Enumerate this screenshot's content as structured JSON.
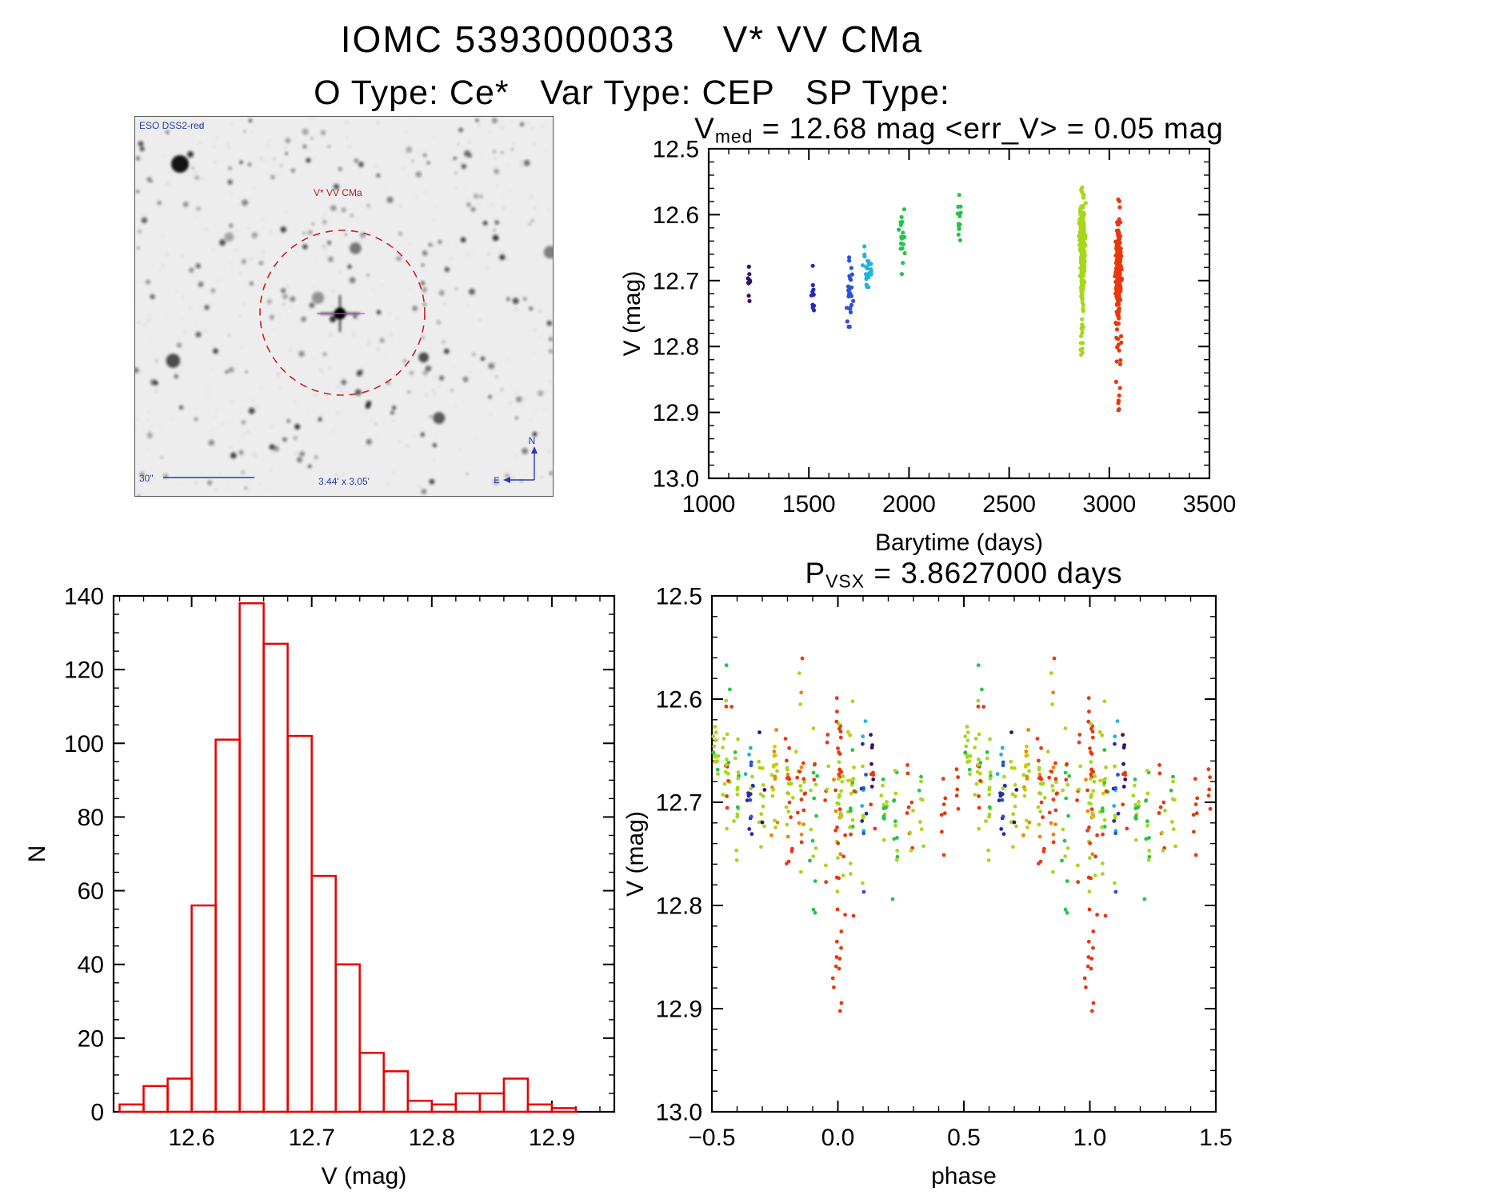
{
  "page": {
    "title": "IOMC 5393000033    V* VV CMa",
    "subtitle": "O Type: Ce*   Var Type: CEP   SP Type:"
  },
  "finder": {
    "survey_label": "ESO DSS2-red",
    "target_label": "V* VV CMa",
    "scale_label": "30\"",
    "fov_label": "3.44' x 3.05'",
    "compass_north": "N",
    "compass_east": "E",
    "marker_color": "#cc2020",
    "annotation_color": "#2a3ab0",
    "target_label_color": "#b22222"
  },
  "palette": {
    "pu": "#3c0d68",
    "nb": "#2a2ab2",
    "bl": "#2a52d6",
    "cy": "#1fb4d8",
    "gr": "#27c24c",
    "ch": "#a6d71c",
    "ye": "#d9c400",
    "or": "#f08300",
    "re": "#e8380d"
  },
  "chart_data": [
    {
      "id": "lightcurve",
      "type": "scatter",
      "title": "V_med = 12.68 mag <err_V> = 0.05 mag",
      "title_parts": {
        "pre": "V",
        "sub": "med",
        "post": " = 12.68 mag <err_V> = 0.05 mag"
      },
      "xlabel": "Barytime (days)",
      "ylabel": "V (mag)",
      "xlim": [
        1000,
        3500
      ],
      "ylim": [
        12.5,
        13.0
      ],
      "invert_y": true,
      "grid": false,
      "xticks": [
        1000,
        1500,
        2000,
        2500,
        3000,
        3500
      ],
      "xtick_labels": [
        "1000",
        "1500",
        "2000",
        "2500",
        "3000",
        "3500"
      ],
      "x_minor": 100,
      "yticks": [
        12.5,
        12.6,
        12.7,
        12.8,
        12.9,
        13.0
      ],
      "ytick_labels": [
        "12.5",
        "12.6",
        "12.7",
        "12.8",
        "12.9",
        "13.0"
      ],
      "y_minor": 0.02,
      "v_med_mag": 12.68,
      "err_v_mag": 0.05,
      "clusters": [
        {
          "x": 1200,
          "xs": 6,
          "n": 9,
          "y": 12.69,
          "ys": 0.028,
          "ymin": 12.645,
          "ymax": 12.735,
          "color": "pu"
        },
        {
          "x": 1520,
          "xs": 5,
          "n": 11,
          "y": 12.71,
          "ys": 0.02,
          "ymin": 12.675,
          "ymax": 12.745,
          "color": "nb"
        },
        {
          "x": 1705,
          "xs": 8,
          "n": 26,
          "y": 12.715,
          "ys": 0.03,
          "ymin": 12.66,
          "ymax": 12.77,
          "color": "bl"
        },
        {
          "x": 1790,
          "xs": 10,
          "n": 22,
          "y": 12.675,
          "ys": 0.018,
          "ymin": 12.645,
          "ymax": 12.71,
          "color": "cy"
        },
        {
          "x": 1965,
          "xs": 7,
          "n": 20,
          "y": 12.635,
          "ys": 0.03,
          "ymin": 12.575,
          "ymax": 12.69,
          "color": "gr"
        },
        {
          "x": 2250,
          "xs": 5,
          "n": 13,
          "y": 12.615,
          "ys": 0.025,
          "ymin": 12.57,
          "ymax": 12.655,
          "color": "gr"
        },
        {
          "x": 2865,
          "xs": 6,
          "n": 280,
          "y": 12.655,
          "ys": 0.038,
          "ymin": 12.55,
          "ymax": 12.785,
          "color": "ch",
          "tail": {
            "n": 10,
            "y0": 12.77,
            "y1": 12.815
          }
        },
        {
          "x": 3045,
          "xs": 7,
          "n": 240,
          "y": 12.685,
          "ys": 0.035,
          "ymin": 12.565,
          "ymax": 12.8,
          "color": "re",
          "tail": {
            "n": 16,
            "y0": 12.78,
            "y1": 12.9
          }
        }
      ]
    },
    {
      "id": "histogram",
      "type": "bar",
      "xlabel": "V (mag)",
      "ylabel": "N",
      "xlim": [
        12.535,
        12.952
      ],
      "ylim": [
        0,
        140
      ],
      "invert_y": false,
      "grid": false,
      "xticks": [
        12.6,
        12.7,
        12.8,
        12.9
      ],
      "xtick_labels": [
        "12.6",
        "12.7",
        "12.8",
        "12.9"
      ],
      "x_minor": 0.02,
      "yticks": [
        0,
        20,
        40,
        60,
        80,
        100,
        120,
        140
      ],
      "ytick_labels": [
        "0",
        "20",
        "40",
        "60",
        "80",
        "100",
        "120",
        "140"
      ],
      "y_minor": 5,
      "color": "#e80000",
      "bin_start": 12.54,
      "bin_width": 0.02,
      "counts": [
        2,
        7,
        9,
        56,
        101,
        138,
        127,
        102,
        64,
        40,
        16,
        11,
        3,
        2,
        5,
        5,
        9,
        2,
        1
      ]
    },
    {
      "id": "phase",
      "type": "scatter",
      "title": "P_VSX = 3.8627000 days",
      "title_parts": {
        "pre": "P",
        "sub": "VSX",
        "post": " = 3.8627000 days"
      },
      "period_days": 3.8627,
      "xlabel": "phase",
      "ylabel": "V (mag)",
      "xlim": [
        -0.5,
        1.5
      ],
      "ylim": [
        12.5,
        13.0
      ],
      "invert_y": true,
      "grid": false,
      "xticks": [
        -0.5,
        0.0,
        0.5,
        1.0,
        1.5
      ],
      "xtick_labels": [
        "−0.5",
        "0.0",
        "0.5",
        "1.0",
        "1.5"
      ],
      "x_minor": 0.1,
      "yticks": [
        12.5,
        12.6,
        12.7,
        12.8,
        12.9,
        13.0
      ],
      "ytick_labels": [
        "12.5",
        "12.6",
        "12.7",
        "12.8",
        "12.9",
        "13.0"
      ],
      "y_minor": 0.02,
      "repeat_phase": true,
      "stripes": [
        {
          "p": -0.485,
          "ps": 0.006,
          "n": 14,
          "y": 12.645,
          "ys": 0.032,
          "colors": [
            "ch",
            "ch",
            "gr"
          ]
        },
        {
          "p": -0.44,
          "ps": 0.007,
          "n": 22,
          "y": 12.66,
          "ys": 0.035,
          "colors": [
            "ch",
            "ch",
            "ch",
            "gr",
            "re"
          ]
        },
        {
          "p": -0.4,
          "ps": 0.006,
          "n": 16,
          "y": 12.68,
          "ys": 0.035,
          "colors": [
            "ch",
            "ch",
            "gr"
          ]
        },
        {
          "p": -0.35,
          "ps": 0.007,
          "n": 18,
          "y": 12.685,
          "ys": 0.03,
          "colors": [
            "ch",
            "cy",
            "cy",
            "bl",
            "nb"
          ]
        },
        {
          "p": -0.3,
          "ps": 0.007,
          "n": 16,
          "y": 12.69,
          "ys": 0.035,
          "colors": [
            "ch",
            "ch",
            "ye",
            "pu"
          ]
        },
        {
          "p": -0.25,
          "ps": 0.007,
          "n": 20,
          "y": 12.675,
          "ys": 0.035,
          "colors": [
            "ch",
            "ch",
            "or",
            "ye"
          ]
        },
        {
          "p": -0.195,
          "ps": 0.008,
          "n": 26,
          "y": 12.69,
          "ys": 0.035,
          "colors": [
            "ch",
            "re",
            "re",
            "or"
          ]
        },
        {
          "p": -0.145,
          "ps": 0.008,
          "n": 24,
          "y": 12.695,
          "ys": 0.04,
          "colors": [
            "ch",
            "ch",
            "re",
            "or"
          ]
        },
        {
          "p": -0.095,
          "ps": 0.007,
          "n": 18,
          "y": 12.69,
          "ys": 0.045,
          "colors": [
            "ch",
            "re",
            "gr"
          ]
        },
        {
          "p": -0.045,
          "ps": 0.006,
          "n": 8,
          "y": 12.7,
          "ys": 0.04,
          "colors": [
            "ch",
            "re"
          ]
        },
        {
          "p": 0.005,
          "ps": 0.009,
          "n": 46,
          "y": 12.69,
          "ys": 0.05,
          "ymin": 12.56,
          "ymax": 12.82,
          "colors": [
            "ch",
            "ch",
            "re",
            "re",
            "or"
          ],
          "tail": {
            "n": 13,
            "y0": 12.79,
            "y1": 12.905,
            "color": "re"
          }
        },
        {
          "p": 0.055,
          "ps": 0.008,
          "n": 24,
          "y": 12.685,
          "ys": 0.045,
          "colors": [
            "ch",
            "re",
            "gr",
            "ye"
          ]
        },
        {
          "p": 0.1,
          "ps": 0.007,
          "n": 17,
          "y": 12.7,
          "ys": 0.035,
          "colors": [
            "ch",
            "cy",
            "bl",
            "nb"
          ]
        },
        {
          "p": 0.14,
          "ps": 0.006,
          "n": 11,
          "y": 12.685,
          "ys": 0.03,
          "colors": [
            "re",
            "re",
            "pu"
          ]
        },
        {
          "p": 0.185,
          "ps": 0.007,
          "n": 14,
          "y": 12.71,
          "ys": 0.035,
          "colors": [
            "ch",
            "ch",
            "gr"
          ]
        },
        {
          "p": 0.23,
          "ps": 0.007,
          "n": 13,
          "y": 12.715,
          "ys": 0.035,
          "colors": [
            "ch",
            "gr"
          ]
        },
        {
          "p": 0.285,
          "ps": 0.007,
          "n": 10,
          "y": 12.7,
          "ys": 0.035,
          "colors": [
            "ch",
            "re"
          ]
        },
        {
          "p": 0.33,
          "ps": 0.006,
          "n": 8,
          "y": 12.72,
          "ys": 0.03,
          "colors": [
            "ch",
            "gr"
          ]
        },
        {
          "p": 0.42,
          "ps": 0.005,
          "n": 7,
          "y": 12.7,
          "ys": 0.02,
          "colors": [
            "re"
          ]
        },
        {
          "p": 0.475,
          "ps": 0.004,
          "n": 5,
          "y": 12.685,
          "ys": 0.015,
          "colors": [
            "re"
          ]
        }
      ]
    }
  ]
}
